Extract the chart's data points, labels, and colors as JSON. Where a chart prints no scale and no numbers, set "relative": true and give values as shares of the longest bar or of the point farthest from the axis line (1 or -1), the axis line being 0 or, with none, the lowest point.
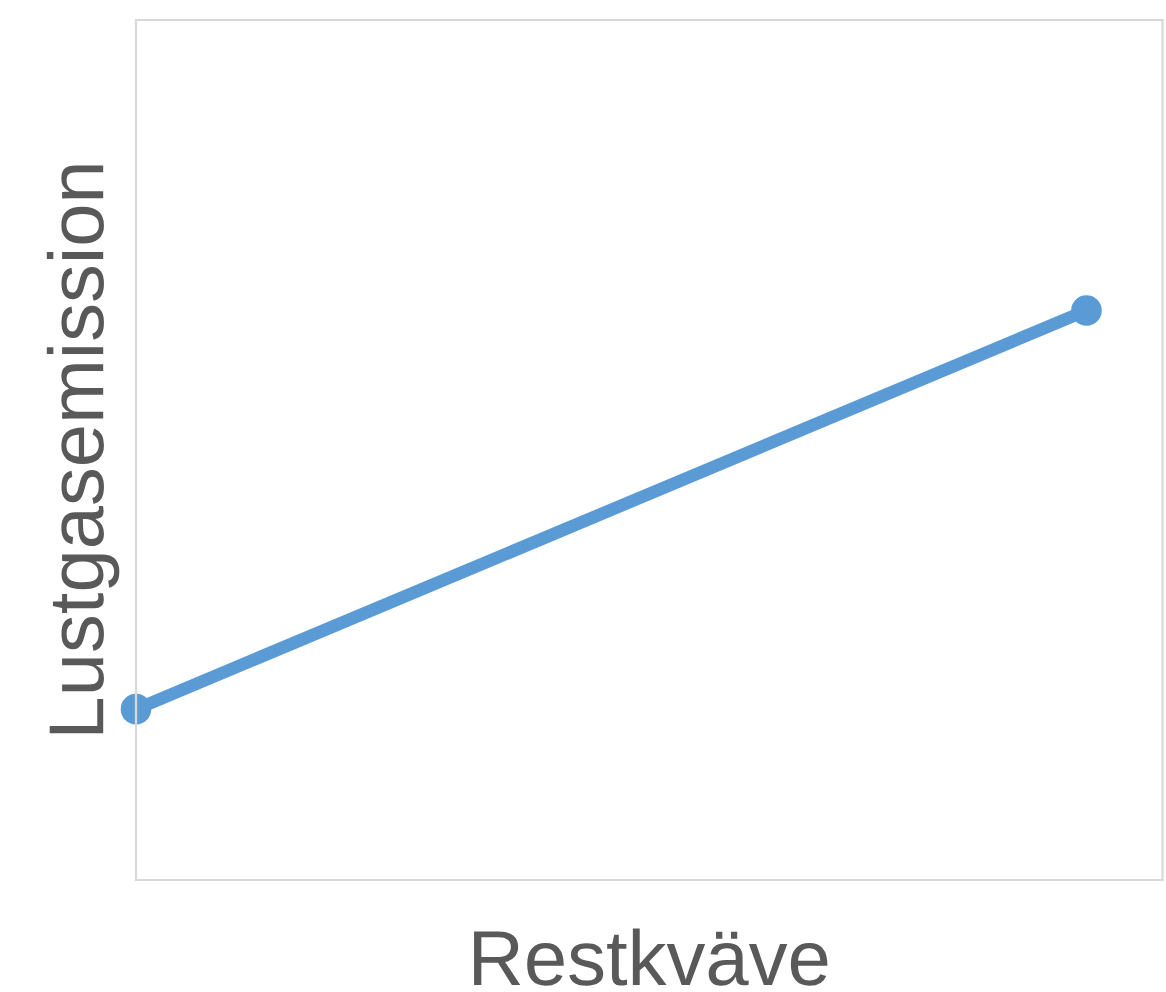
{
  "chart_data": {
    "type": "line",
    "xlabel": "Restkväve",
    "ylabel": "Lustgasemission",
    "relative": true,
    "categories": [
      null,
      null
    ],
    "series": [
      {
        "color": "#5b9bd5",
        "values": [
          0.3,
          1
        ]
      }
    ],
    "marker": "circle",
    "line_style": "solid",
    "grid": false,
    "legend": false
  }
}
